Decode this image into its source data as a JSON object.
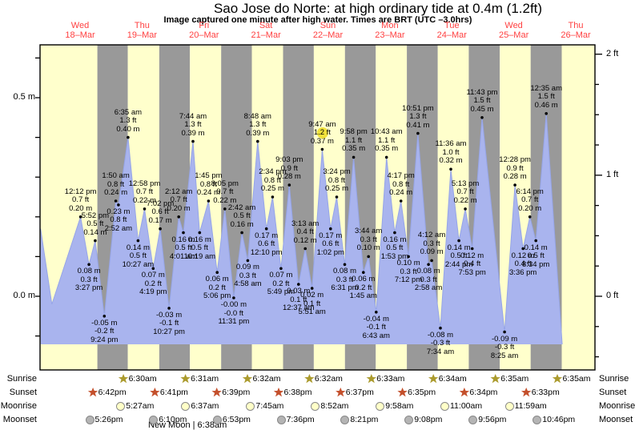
{
  "title": "Sao Jose do Norte: at high ordinary tide at 0.4m (1.2ft)",
  "subtitle": "Image captured one minute after high water. Times are BRT (UTC –3.0hrs)",
  "days": [
    {
      "name": "Wed",
      "date": "18–Mar"
    },
    {
      "name": "Thu",
      "date": "19–Mar"
    },
    {
      "name": "Fri",
      "date": "20–Mar"
    },
    {
      "name": "Sat",
      "date": "21–Mar"
    },
    {
      "name": "Sun",
      "date": "22–Mar"
    },
    {
      "name": "Mon",
      "date": "23–Mar"
    },
    {
      "name": "Tue",
      "date": "24–Mar"
    },
    {
      "name": "Wed",
      "date": "25–Mar"
    },
    {
      "name": "Thu",
      "date": "26–Mar"
    }
  ],
  "axis": {
    "left_labels": [
      {
        "label": "0.5 m",
        "m": 0.5
      },
      {
        "label": "0.0 m",
        "m": 0.0
      }
    ],
    "right_labels": [
      {
        "label": "2 ft",
        "ft": 2
      },
      {
        "label": "1 ft",
        "ft": 1
      },
      {
        "label": "0 ft",
        "ft": 0
      }
    ]
  },
  "side_labels": {
    "sunrise": "Sunrise",
    "sunset": "Sunset",
    "moonrise": "Moonrise",
    "moonset": "Moonset"
  },
  "colors": {
    "day_band": "#ffffcc",
    "night_band": "#999999",
    "tide_fill": "#a9b4ee",
    "tide_stroke": "#96a5e8",
    "day_label_red": "#ff4040",
    "highlight": "#f0e13c",
    "sunrise_star": "#ab9b2e",
    "sunset_star": "#c4502c",
    "moonrise_circle": "#ffffc8",
    "moonset_circle": "#b4b4b4"
  },
  "chart_data": {
    "type": "area",
    "title": "Sao Jose do Norte tide heights",
    "xlabel": "Days 18–Mar to 26–Mar",
    "ylabel_left": "metres",
    "ylabel_right": "feet",
    "ylim_m": [
      -0.19,
      0.63
    ],
    "tide_events": [
      {
        "day": 0,
        "time": "12:12 pm",
        "type": "high",
        "height_m": 0.2,
        "m": "0.20 m",
        "ft": "0.7 ft"
      },
      {
        "day": 0,
        "time": "3:27 pm",
        "type": "low",
        "height_m": 0.08,
        "m": "0.08 m",
        "ft": "0.3 ft"
      },
      {
        "day": 0,
        "time": "5:52 pm",
        "type": "high",
        "height_m": 0.14,
        "m": "0.14 m",
        "ft": "0.5 ft"
      },
      {
        "day": 0,
        "time": "9:24 pm",
        "type": "low",
        "height_m": -0.05,
        "m": "-0.05 m",
        "ft": "-0.2 ft"
      },
      {
        "day": 1,
        "time": "1:50 am",
        "type": "high",
        "height_m": 0.24,
        "m": "0.24 m",
        "ft": "0.8 ft"
      },
      {
        "day": 1,
        "time": "2:52 am",
        "type": "low",
        "height_m": 0.23,
        "m": "0.23 m",
        "ft": "0.8 ft"
      },
      {
        "day": 1,
        "time": "6:35 am",
        "type": "high",
        "height_m": 0.4,
        "m": "0.40 m",
        "ft": "1.3 ft"
      },
      {
        "day": 1,
        "time": "10:27 am",
        "type": "low",
        "height_m": 0.14,
        "m": "0.14 m",
        "ft": "0.5 ft"
      },
      {
        "day": 1,
        "time": "12:58 pm",
        "type": "high",
        "height_m": 0.22,
        "m": "0.22 m",
        "ft": "0.7 ft"
      },
      {
        "day": 1,
        "time": "4:19 pm",
        "type": "low",
        "height_m": 0.07,
        "m": "0.07 m",
        "ft": "0.2 ft"
      },
      {
        "day": 1,
        "time": "7:02 pm",
        "type": "high",
        "height_m": 0.17,
        "m": "0.17 m",
        "ft": "0.6 ft"
      },
      {
        "day": 1,
        "time": "10:27 pm",
        "type": "low",
        "height_m": -0.03,
        "m": "-0.03 m",
        "ft": "-0.1 ft"
      },
      {
        "day": 2,
        "time": "2:12 am",
        "type": "high",
        "height_m": 0.2,
        "m": "0.20 m",
        "ft": "0.7 ft"
      },
      {
        "day": 2,
        "time": "4:01 am",
        "type": "low",
        "height_m": 0.16,
        "m": "0.16 m",
        "ft": "0.5 ft"
      },
      {
        "day": 2,
        "time": "7:44 am",
        "type": "high",
        "height_m": 0.39,
        "m": "0.39 m",
        "ft": "1.3 ft"
      },
      {
        "day": 2,
        "time": "10:19 am",
        "type": "low",
        "height_m": 0.16,
        "m": "0.16 m",
        "ft": "0.5 ft"
      },
      {
        "day": 2,
        "time": "1:45 pm",
        "type": "high",
        "height_m": 0.24,
        "m": "0.24 m",
        "ft": "0.8 ft"
      },
      {
        "day": 2,
        "time": "5:06 pm",
        "type": "low",
        "height_m": 0.06,
        "m": "0.06 m",
        "ft": "0.2 ft"
      },
      {
        "day": 2,
        "time": "8:05 pm",
        "type": "high",
        "height_m": 0.22,
        "m": "0.22 m",
        "ft": "0.7 ft"
      },
      {
        "day": 2,
        "time": "11:31 pm",
        "type": "low",
        "height_m": -0.004,
        "m": "-0.00 m",
        "ft": "-0.0 ft"
      },
      {
        "day": 3,
        "time": "2:42 am",
        "type": "high",
        "height_m": 0.16,
        "m": "0.16 m",
        "ft": "0.5 ft"
      },
      {
        "day": 3,
        "time": "4:58 am",
        "type": "low",
        "height_m": 0.09,
        "m": "0.09 m",
        "ft": "0.3 ft"
      },
      {
        "day": 3,
        "time": "8:48 am",
        "type": "high",
        "height_m": 0.39,
        "m": "0.39 m",
        "ft": "1.3 ft"
      },
      {
        "day": 3,
        "time": "12:10 pm",
        "type": "low",
        "height_m": 0.17,
        "m": "0.17 m",
        "ft": "0.6 ft"
      },
      {
        "day": 3,
        "time": "2:34 pm",
        "type": "high",
        "height_m": 0.25,
        "m": "0.25 m",
        "ft": "0.8 ft"
      },
      {
        "day": 3,
        "time": "5:49 pm",
        "type": "low",
        "height_m": 0.07,
        "m": "0.07 m",
        "ft": "0.2 ft"
      },
      {
        "day": 3,
        "time": "9:03 pm",
        "type": "high",
        "height_m": 0.28,
        "m": "0.28 m",
        "ft": "0.9 ft"
      },
      {
        "day": 4,
        "time": "12:37 am",
        "type": "low",
        "height_m": 0.03,
        "m": "0.03 m",
        "ft": "0.1 ft"
      },
      {
        "day": 4,
        "time": "3:13 am",
        "type": "high",
        "height_m": 0.12,
        "m": "0.12 m",
        "ft": "0.4 ft"
      },
      {
        "day": 4,
        "time": "5:51 am",
        "type": "low",
        "height_m": 0.02,
        "m": "0.02 m",
        "ft": "0.1 ft"
      },
      {
        "day": 4,
        "time": "9:47 am",
        "type": "high",
        "height_m": 0.37,
        "m": "0.37 m",
        "ft": "1.2 ft",
        "highlight": true
      },
      {
        "day": 4,
        "time": "1:02 pm",
        "type": "low",
        "height_m": 0.17,
        "m": "0.17 m",
        "ft": "0.6 ft"
      },
      {
        "day": 4,
        "time": "3:24 pm",
        "type": "high",
        "height_m": 0.25,
        "m": "0.25 m",
        "ft": "0.8 ft"
      },
      {
        "day": 4,
        "time": "6:31 pm",
        "type": "low",
        "height_m": 0.08,
        "m": "0.08 m",
        "ft": "0.3 ft"
      },
      {
        "day": 4,
        "time": "9:58 pm",
        "type": "high",
        "height_m": 0.35,
        "m": "0.35 m",
        "ft": "1.1 ft"
      },
      {
        "day": 5,
        "time": "1:45 am",
        "type": "low",
        "height_m": 0.06,
        "m": "0.06 m",
        "ft": "0.2 ft"
      },
      {
        "day": 5,
        "time": "3:44 am",
        "type": "high",
        "height_m": 0.1,
        "m": "0.10 m",
        "ft": "0.3 ft"
      },
      {
        "day": 5,
        "time": "6:43 am",
        "type": "low",
        "height_m": -0.04,
        "m": "-0.04 m",
        "ft": "-0.1 ft"
      },
      {
        "day": 5,
        "time": "10:43 am",
        "type": "high",
        "height_m": 0.35,
        "m": "0.35 m",
        "ft": "1.1 ft"
      },
      {
        "day": 5,
        "time": "1:53 pm",
        "type": "low",
        "height_m": 0.16,
        "m": "0.16 m",
        "ft": "0.5 ft"
      },
      {
        "day": 5,
        "time": "4:17 pm",
        "type": "high",
        "height_m": 0.24,
        "m": "0.24 m",
        "ft": "0.8 ft"
      },
      {
        "day": 5,
        "time": "7:12 pm",
        "type": "low",
        "height_m": 0.1,
        "m": "0.10 m",
        "ft": "0.3 ft"
      },
      {
        "day": 5,
        "time": "10:51 pm",
        "type": "high",
        "height_m": 0.41,
        "m": "0.41 m",
        "ft": "1.3 ft"
      },
      {
        "day": 6,
        "time": "2:58 am",
        "type": "low",
        "height_m": 0.08,
        "m": "0.08 m",
        "ft": "0.3 ft"
      },
      {
        "day": 6,
        "time": "4:12 am",
        "type": "high",
        "height_m": 0.09,
        "m": "0.09 m",
        "ft": "0.3 ft"
      },
      {
        "day": 6,
        "time": "7:34 am",
        "type": "low",
        "height_m": -0.08,
        "m": "-0.08 m",
        "ft": "-0.3 ft"
      },
      {
        "day": 6,
        "time": "11:36 am",
        "type": "high",
        "height_m": 0.32,
        "m": "0.32 m",
        "ft": "1.0 ft"
      },
      {
        "day": 6,
        "time": "2:44 pm",
        "type": "low",
        "height_m": 0.14,
        "m": "0.14 m",
        "ft": "0.5 ft"
      },
      {
        "day": 6,
        "time": "5:13 pm",
        "type": "high",
        "height_m": 0.22,
        "m": "0.22 m",
        "ft": "0.7 ft"
      },
      {
        "day": 6,
        "time": "7:53 pm",
        "type": "low",
        "height_m": 0.12,
        "m": "0.12 m",
        "ft": "0.4 ft"
      },
      {
        "day": 6,
        "time": "11:43 pm",
        "type": "high",
        "height_m": 0.45,
        "m": "0.45 m",
        "ft": "1.5 ft"
      },
      {
        "day": 7,
        "time": "8:25 am",
        "type": "low",
        "height_m": -0.09,
        "m": "-0.09 m",
        "ft": "-0.3 ft"
      },
      {
        "day": 7,
        "time": "12:28 pm",
        "type": "high",
        "height_m": 0.28,
        "m": "0.28 m",
        "ft": "0.9 ft"
      },
      {
        "day": 7,
        "time": "3:36 pm",
        "type": "low",
        "height_m": 0.12,
        "m": "0.12 m",
        "ft": "0.4 ft"
      },
      {
        "day": 7,
        "time": "6:14 pm",
        "type": "high",
        "height_m": 0.2,
        "m": "0.20 m",
        "ft": "0.7 ft"
      },
      {
        "day": 7,
        "time": "8:34 pm",
        "type": "low",
        "height_m": 0.14,
        "m": "0.14 m",
        "ft": "0.5 ft"
      },
      {
        "day": 8,
        "time": "12:35 am",
        "type": "high",
        "height_m": 0.46,
        "m": "0.46 m",
        "ft": "1.5 ft"
      }
    ],
    "curve_edge_points": [
      {
        "day": -1,
        "time": "8:42 pm",
        "height_m": 0.17
      },
      {
        "day": 0,
        "time": "1:05 am",
        "height_m": -0.02
      },
      {
        "day": 8,
        "time": "6:45 am",
        "height_m": -0.13
      }
    ],
    "sun_moon": {
      "sunrise": [
        {
          "day": 1,
          "time": "6:30am"
        },
        {
          "day": 2,
          "time": "6:31am"
        },
        {
          "day": 3,
          "time": "6:32am"
        },
        {
          "day": 4,
          "time": "6:32am"
        },
        {
          "day": 5,
          "time": "6:33am"
        },
        {
          "day": 6,
          "time": "6:34am"
        },
        {
          "day": 7,
          "time": "6:35am"
        },
        {
          "day": 8,
          "time": "6:35am"
        }
      ],
      "sunset": [
        {
          "day": 0,
          "time": "6:42pm"
        },
        {
          "day": 1,
          "time": "6:41pm"
        },
        {
          "day": 2,
          "time": "6:39pm"
        },
        {
          "day": 3,
          "time": "6:38pm"
        },
        {
          "day": 4,
          "time": "6:37pm"
        },
        {
          "day": 5,
          "time": "6:35pm"
        },
        {
          "day": 6,
          "time": "6:34pm"
        },
        {
          "day": 7,
          "time": "6:33pm"
        }
      ],
      "moonrise": [
        {
          "day": 1,
          "time": "5:27am"
        },
        {
          "day": 2,
          "time": "6:37am"
        },
        {
          "day": 3,
          "time": "7:45am"
        },
        {
          "day": 4,
          "time": "8:52am"
        },
        {
          "day": 5,
          "time": "9:58am"
        },
        {
          "day": 6,
          "time": "11:00am"
        },
        {
          "day": 7,
          "time": "11:59am"
        }
      ],
      "moonset": [
        {
          "day": 0,
          "time": "5:26pm"
        },
        {
          "day": 1,
          "time": "6:10pm"
        },
        {
          "day": 2,
          "time": "6:53pm"
        },
        {
          "day": 3,
          "time": "7:36pm"
        },
        {
          "day": 4,
          "time": "8:21pm"
        },
        {
          "day": 5,
          "time": "9:08pm"
        },
        {
          "day": 6,
          "time": "9:56pm"
        },
        {
          "day": 7,
          "time": "10:46pm"
        }
      ]
    },
    "moon_phase_note": "New Moon | 6:38am"
  }
}
